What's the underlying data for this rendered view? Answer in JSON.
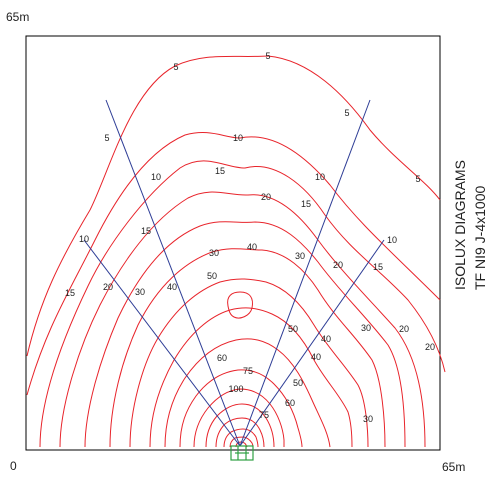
{
  "corner_labels": {
    "top_left": "65m",
    "origin": "0",
    "bottom_right": "65m"
  },
  "side_title": {
    "line1": "ISOLUX DIAGRAMS",
    "line2": "TF NI9 J-4x1000"
  },
  "colors": {
    "isolux": "#e8242b",
    "beam": "#2e3d96",
    "frame": "#000000",
    "fixture": "#2ea043"
  },
  "contour_labels": [
    "5",
    "5",
    "5",
    "5",
    "5",
    "10",
    "10",
    "10",
    "10",
    "10",
    "15",
    "15",
    "15",
    "15",
    "15",
    "20",
    "20",
    "20",
    "20",
    "20",
    "30",
    "30",
    "30",
    "30",
    "30",
    "40",
    "40",
    "40",
    "40",
    "50",
    "50",
    "50",
    "60",
    "60",
    "75",
    "75",
    "100"
  ]
}
